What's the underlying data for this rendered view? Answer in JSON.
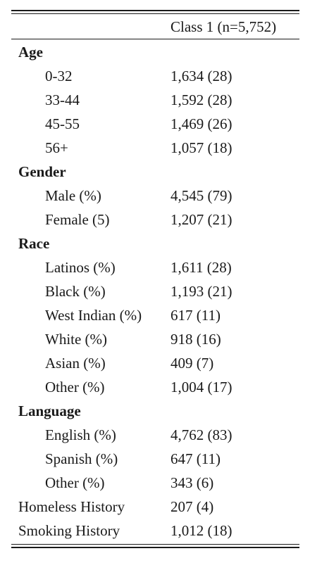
{
  "table": {
    "column_header": "Class 1 (n=5,752)",
    "rows": [
      {
        "type": "section",
        "label": "Age",
        "value": ""
      },
      {
        "type": "item",
        "label": "0-32",
        "value": "1,634 (28)"
      },
      {
        "type": "item",
        "label": "33-44",
        "value": "1,592 (28)"
      },
      {
        "type": "item",
        "label": "45-55",
        "value": "1,469 (26)"
      },
      {
        "type": "item",
        "label": "56+",
        "value": "1,057 (18)"
      },
      {
        "type": "section",
        "label": "Gender",
        "value": ""
      },
      {
        "type": "item",
        "label": "Male (%)",
        "value": "4,545 (79)"
      },
      {
        "type": "item",
        "label": "Female (5)",
        "value": "1,207 (21)"
      },
      {
        "type": "section",
        "label": "Race",
        "value": ""
      },
      {
        "type": "item",
        "label": "Latinos (%)",
        "value": "1,611 (28)"
      },
      {
        "type": "item",
        "label": "Black (%)",
        "value": "1,193 (21)"
      },
      {
        "type": "item",
        "label": "West Indian (%)",
        "value": "617 (11)"
      },
      {
        "type": "item",
        "label": "White (%)",
        "value": "918 (16)"
      },
      {
        "type": "item",
        "label": "Asian (%)",
        "value": "409 (7)"
      },
      {
        "type": "item",
        "label": "Other (%)",
        "value": "1,004 (17)"
      },
      {
        "type": "section",
        "label": "Language",
        "value": ""
      },
      {
        "type": "item",
        "label": "English (%)",
        "value": "4,762 (83)"
      },
      {
        "type": "item",
        "label": "Spanish (%)",
        "value": "647 (11)"
      },
      {
        "type": "item",
        "label": "Other (%)",
        "value": "343 (6)"
      },
      {
        "type": "plain",
        "label": "Homeless History",
        "value": "207 (4)"
      },
      {
        "type": "plain",
        "label": "Smoking History",
        "value": "1,012 (18)"
      }
    ]
  }
}
